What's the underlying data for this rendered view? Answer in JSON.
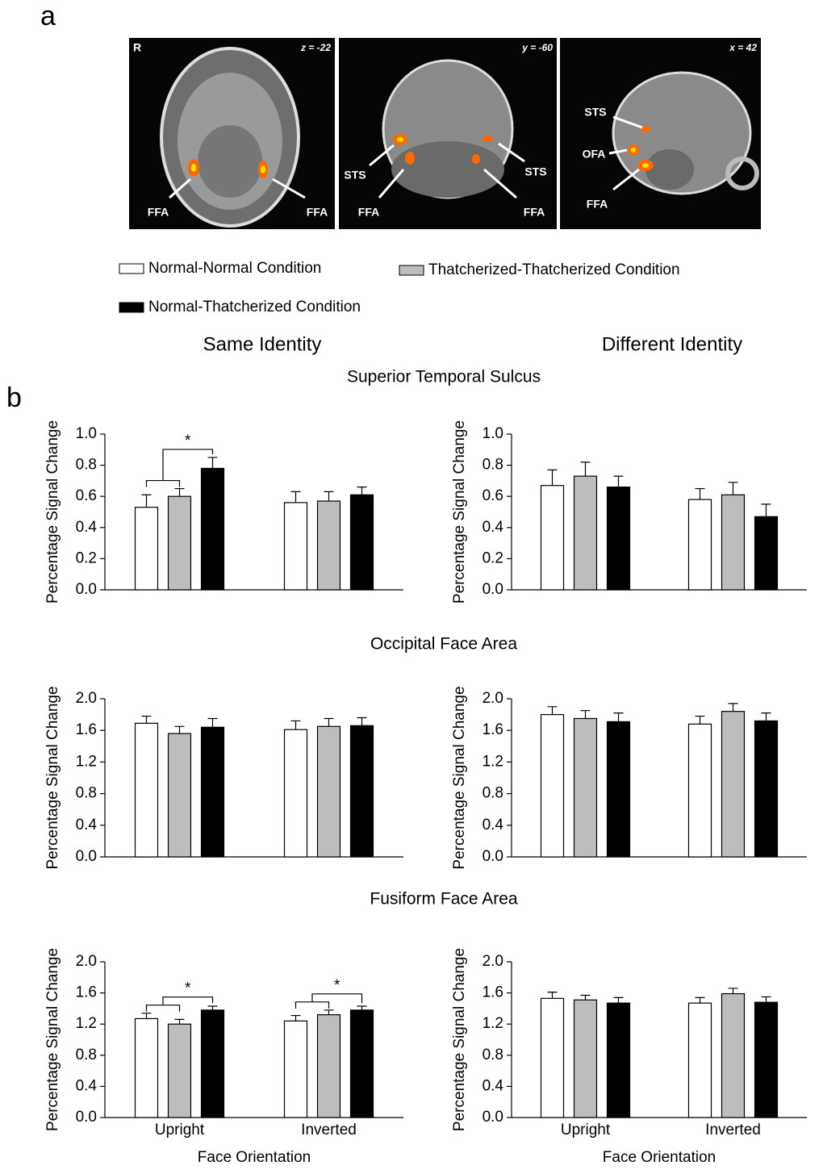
{
  "panel_labels": {
    "a": "a",
    "b": "b"
  },
  "brain_images": [
    {
      "corner_left": "R",
      "corner_right": "z = -22",
      "labels": [
        "FFA",
        "FFA"
      ]
    },
    {
      "corner_right": "y = -60",
      "labels": [
        "STS",
        "STS",
        "FFA",
        "FFA"
      ]
    },
    {
      "corner_right": "x = 42",
      "labels": [
        "STS",
        "OFA",
        "FFA"
      ]
    }
  ],
  "legend": [
    {
      "name": "Normal-Normal Condition",
      "color": "#ffffff"
    },
    {
      "name": "Thatcherized-Thatcherized Condition",
      "color": "#bdbdbd"
    },
    {
      "name": "Normal-Thatcherized Condition",
      "color": "#000000"
    }
  ],
  "column_titles": [
    "Same Identity",
    "Different Identity"
  ],
  "row_titles": [
    "Superior Temporal Sulcus",
    "Occipital Face Area",
    "Fusiform Face Area"
  ],
  "chart_data": [
    {
      "type": "bar",
      "ylabel": "Percentage Signal Change",
      "categories": [
        null,
        null
      ],
      "series": [
        {
          "color": "#ffffff",
          "values": [
            0.53,
            0.56
          ],
          "errors": [
            0.08,
            0.07
          ]
        },
        {
          "color": "#bdbdbd",
          "values": [
            0.6,
            0.57
          ],
          "errors": [
            0.05,
            0.06
          ]
        },
        {
          "color": "#000000",
          "values": [
            0.78,
            0.61
          ],
          "errors": [
            0.07,
            0.05
          ]
        }
      ],
      "significance": [
        "*",
        null
      ],
      "ylim": [
        0,
        1
      ],
      "yticks": [
        {
          "value": 0,
          "label": "0.0"
        },
        0.2,
        0.4,
        0.6,
        0.8,
        {
          "value": 1,
          "label": "1.0"
        }
      ]
    },
    {
      "type": "bar",
      "ylabel": "Percentage Signal Change",
      "categories": [
        null,
        null
      ],
      "series": [
        {
          "color": "#ffffff",
          "values": [
            0.67,
            0.58
          ],
          "errors": [
            0.1,
            0.07
          ]
        },
        {
          "color": "#bdbdbd",
          "values": [
            0.73,
            0.61
          ],
          "errors": [
            0.09,
            0.08
          ]
        },
        {
          "color": "#000000",
          "values": [
            0.66,
            0.47
          ],
          "errors": [
            0.07,
            0.08
          ]
        }
      ],
      "significance": [
        null,
        null
      ],
      "ylim": [
        0,
        1
      ],
      "yticks": [
        {
          "value": 0,
          "label": "0.0"
        },
        0.2,
        0.4,
        0.6,
        0.8,
        {
          "value": 1,
          "label": "1.0"
        }
      ]
    },
    {
      "type": "bar",
      "ylabel": "Percentage Signal Change",
      "categories": [
        null,
        null
      ],
      "series": [
        {
          "color": "#ffffff",
          "values": [
            1.69,
            1.61
          ],
          "errors": [
            0.09,
            0.11
          ]
        },
        {
          "color": "#bdbdbd",
          "values": [
            1.56,
            1.65
          ],
          "errors": [
            0.09,
            0.1
          ]
        },
        {
          "color": "#000000",
          "values": [
            1.64,
            1.66
          ],
          "errors": [
            0.11,
            0.1
          ]
        }
      ],
      "significance": [
        null,
        null
      ],
      "ylim": [
        0,
        2
      ],
      "yticks": [
        {
          "value": 0,
          "label": "0.0"
        },
        0.4,
        0.8,
        1.2,
        1.6,
        {
          "value": 2,
          "label": "2.0"
        }
      ]
    },
    {
      "type": "bar",
      "ylabel": "Percentage Signal Change",
      "categories": [
        null,
        null
      ],
      "series": [
        {
          "color": "#ffffff",
          "values": [
            1.8,
            1.68
          ],
          "errors": [
            0.1,
            0.1
          ]
        },
        {
          "color": "#bdbdbd",
          "values": [
            1.75,
            1.84
          ],
          "errors": [
            0.1,
            0.1
          ]
        },
        {
          "color": "#000000",
          "values": [
            1.71,
            1.72
          ],
          "errors": [
            0.11,
            0.1
          ]
        }
      ],
      "significance": [
        null,
        null
      ],
      "ylim": [
        0,
        2
      ],
      "yticks": [
        {
          "value": 0,
          "label": "0.0"
        },
        0.4,
        0.8,
        1.2,
        1.6,
        {
          "value": 2,
          "label": "2.0"
        }
      ]
    },
    {
      "type": "bar",
      "ylabel": "Percentage Signal Change",
      "xlabel": "Face Orientation",
      "categories": [
        "Upright",
        "Inverted"
      ],
      "series": [
        {
          "color": "#ffffff",
          "values": [
            1.27,
            1.24
          ],
          "errors": [
            0.07,
            0.07
          ]
        },
        {
          "color": "#bdbdbd",
          "values": [
            1.2,
            1.32
          ],
          "errors": [
            0.06,
            0.06
          ]
        },
        {
          "color": "#000000",
          "values": [
            1.38,
            1.38
          ],
          "errors": [
            0.05,
            0.05
          ]
        }
      ],
      "significance": [
        "*",
        "*"
      ],
      "ylim": [
        0,
        2
      ],
      "yticks": [
        {
          "value": 0,
          "label": "0.0"
        },
        0.4,
        0.8,
        1.2,
        1.6,
        {
          "value": 2,
          "label": "2.0"
        }
      ]
    },
    {
      "type": "bar",
      "ylabel": "Percentage Signal Change",
      "xlabel": "Face Orientation",
      "categories": [
        "Upright",
        "Inverted"
      ],
      "series": [
        {
          "color": "#ffffff",
          "values": [
            1.53,
            1.47
          ],
          "errors": [
            0.08,
            0.07
          ]
        },
        {
          "color": "#bdbdbd",
          "values": [
            1.51,
            1.59
          ],
          "errors": [
            0.06,
            0.07
          ]
        },
        {
          "color": "#000000",
          "values": [
            1.47,
            1.48
          ],
          "errors": [
            0.07,
            0.07
          ]
        }
      ],
      "significance": [
        null,
        null
      ],
      "ylim": [
        0,
        2
      ],
      "yticks": [
        {
          "value": 0,
          "label": "0.0"
        },
        0.4,
        0.8,
        1.2,
        1.6,
        {
          "value": 2,
          "label": "2.0"
        }
      ]
    }
  ]
}
